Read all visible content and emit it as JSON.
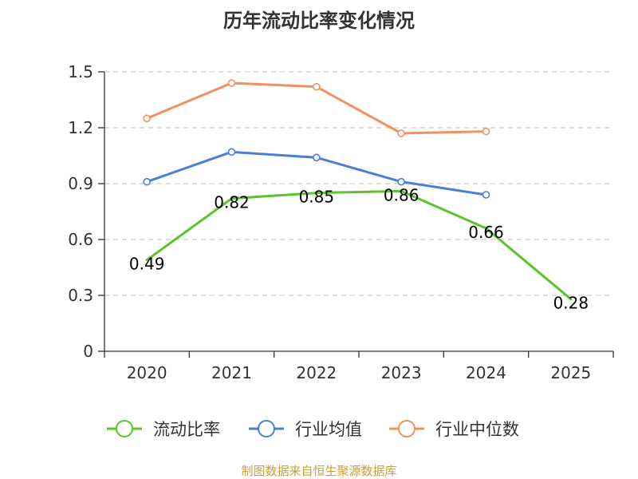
{
  "chart_data": {
    "type": "line",
    "title": "历年流动比率变化情况",
    "categories": [
      "2020",
      "2021",
      "2022",
      "2023",
      "2024",
      "2025"
    ],
    "ylim": [
      0,
      1.5
    ],
    "yticks": [
      0,
      0.3,
      0.6,
      0.9,
      1.2,
      1.5
    ],
    "ytick_labels": [
      "0",
      "0.3",
      "0.6",
      "0.9",
      "1.2",
      "1.5"
    ],
    "grid": true,
    "legend_position": "bottom",
    "series": [
      {
        "name": "流动比率",
        "color": "#5cc42b",
        "values": [
          0.49,
          0.82,
          0.85,
          0.86,
          0.66,
          0.28
        ],
        "labels": [
          "0.49",
          "0.82",
          "0.85",
          "0.86",
          "0.66",
          "0.28"
        ],
        "show_markers": false
      },
      {
        "name": "行业均值",
        "color": "#4a7fd8",
        "values": [
          0.91,
          1.07,
          1.04,
          0.91,
          0.84,
          null
        ],
        "show_markers": true
      },
      {
        "name": "行业中位数",
        "color": "#f29060",
        "values": [
          1.25,
          1.44,
          1.42,
          1.17,
          1.18,
          null
        ],
        "show_markers": true
      }
    ]
  },
  "source": {
    "text": "制图数据来自恒生聚源数据库",
    "color": "#c9a03a"
  },
  "axis": {
    "color": "#333333",
    "grid_color": "#cccccc"
  }
}
